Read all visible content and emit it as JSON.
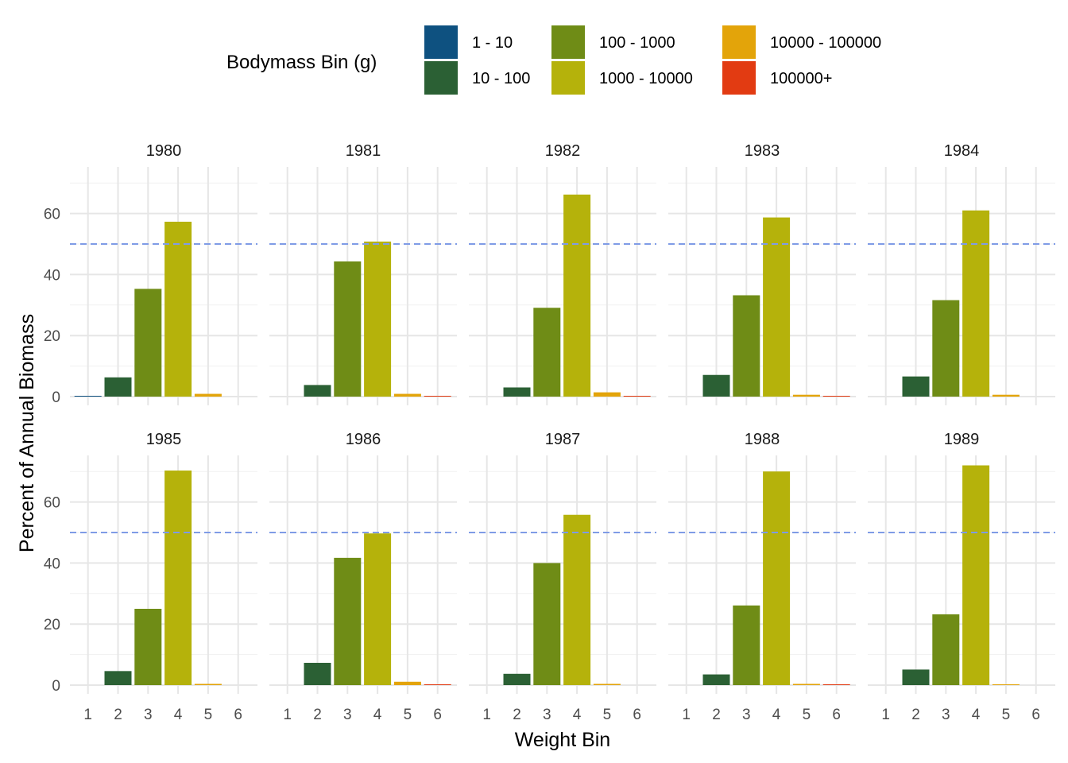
{
  "chart_data": {
    "type": "bar",
    "xlabel": "Weight Bin",
    "ylabel": "Percent of Annual Biomass",
    "x_categories": [
      "1",
      "2",
      "3",
      "4",
      "5",
      "6"
    ],
    "ylim": [
      0,
      72
    ],
    "y_ticks": [
      0,
      20,
      40,
      60
    ],
    "reference_line": {
      "y": 50,
      "style": "dashed",
      "color": "#7f9be6"
    },
    "grid": true,
    "legend": {
      "title": "Bodymass Bin (g)",
      "placement": "top",
      "entries": [
        {
          "label": "1 - 10",
          "color": "#0e5180"
        },
        {
          "label": "10 - 100",
          "color": "#2b6034"
        },
        {
          "label": "100 - 1000",
          "color": "#6f8c16"
        },
        {
          "label": "1000 - 10000",
          "color": "#b5b20b"
        },
        {
          "label": "10000 - 100000",
          "color": "#e3a40a"
        },
        {
          "label": "100000+",
          "color": "#e23b12"
        }
      ]
    },
    "panels": [
      {
        "title": "1980",
        "values": [
          0.2,
          6.3,
          35.3,
          57.3,
          0.9,
          0
        ]
      },
      {
        "title": "1981",
        "values": [
          0,
          3.8,
          44.3,
          50.8,
          0.9,
          0.2
        ]
      },
      {
        "title": "1982",
        "values": [
          0,
          3.0,
          29.1,
          66.2,
          1.4,
          0.2
        ]
      },
      {
        "title": "1983",
        "values": [
          0,
          7.1,
          33.2,
          58.7,
          0.6,
          0.2
        ]
      },
      {
        "title": "1984",
        "values": [
          0,
          6.6,
          31.6,
          61.0,
          0.6,
          0
        ]
      },
      {
        "title": "1985",
        "values": [
          0,
          4.6,
          25.0,
          70.3,
          0.4,
          0
        ]
      },
      {
        "title": "1986",
        "values": [
          0,
          7.3,
          41.7,
          49.7,
          1.1,
          0.1
        ]
      },
      {
        "title": "1987",
        "values": [
          0,
          3.7,
          40.0,
          55.8,
          0.4,
          0
        ]
      },
      {
        "title": "1988",
        "values": [
          0,
          3.5,
          26.1,
          70.0,
          0.4,
          0.1
        ]
      },
      {
        "title": "1989",
        "values": [
          0,
          5.1,
          23.2,
          72.0,
          0.2,
          0
        ]
      }
    ]
  }
}
